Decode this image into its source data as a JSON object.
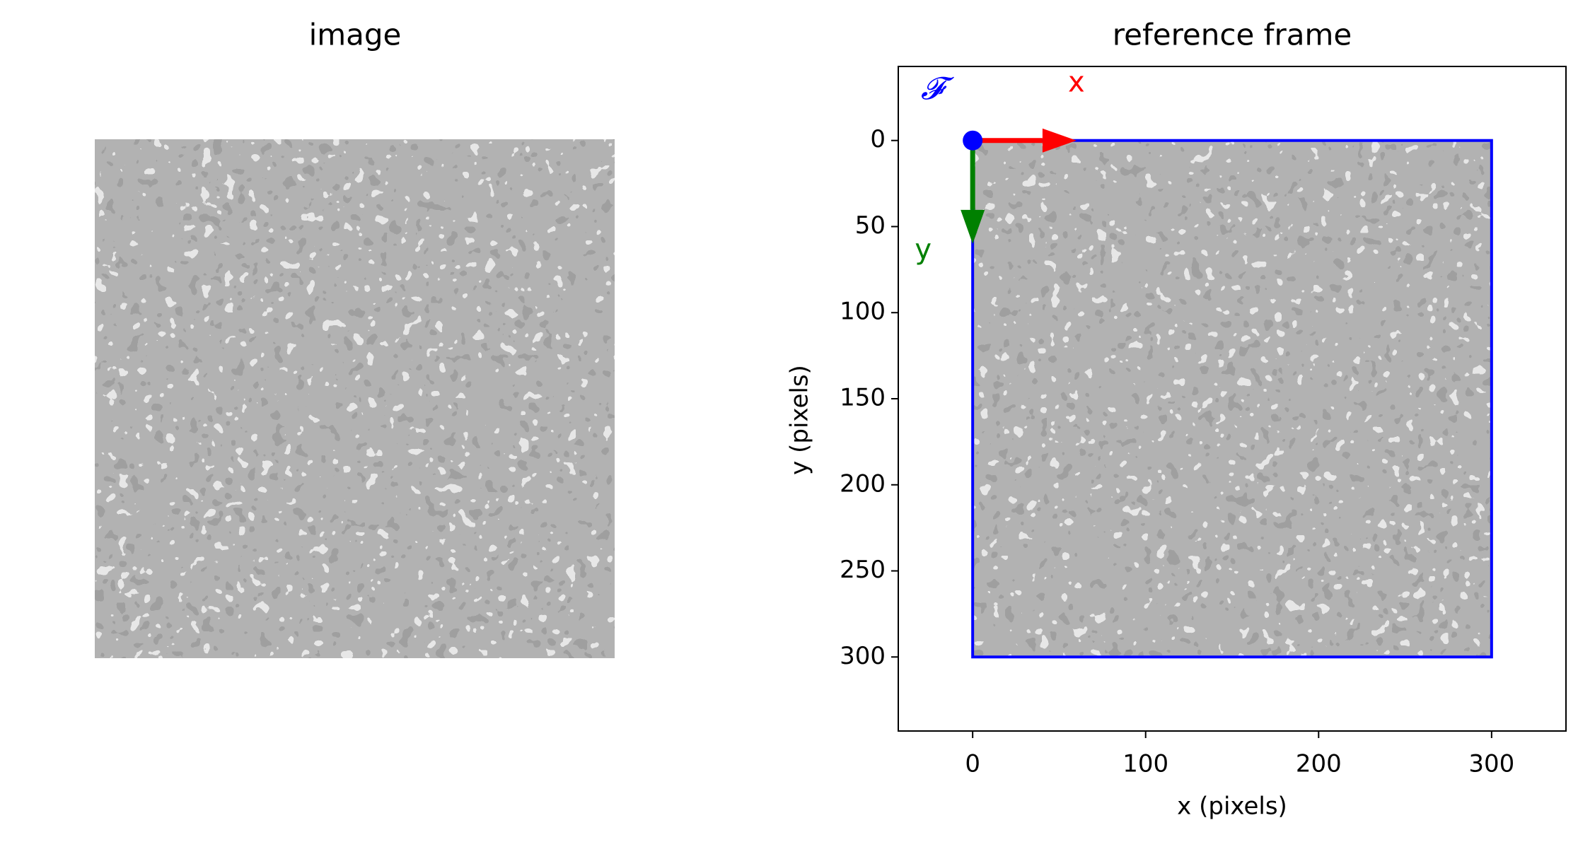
{
  "chart_data": [
    {
      "type": "image",
      "title": "image",
      "extent": [
        0,
        300,
        0,
        300
      ]
    },
    {
      "type": "image",
      "title": "reference frame",
      "extent": [
        0,
        300,
        0,
        300
      ],
      "xlabel": "x (pixels)",
      "ylabel": "y (pixels)",
      "xlim": [
        -43,
        343
      ],
      "ylim": [
        343,
        -43
      ],
      "xticks": [
        0,
        100,
        200,
        300
      ],
      "yticks": [
        0,
        50,
        100,
        150,
        200,
        250,
        300
      ],
      "frame_color": "#0000ff",
      "origin": {
        "x": 0,
        "y": 0,
        "label": "𝓕",
        "color": "#0000ff"
      },
      "axes_arrows": [
        {
          "label": "x",
          "color": "#ff0000",
          "dx": 60,
          "dy": 0
        },
        {
          "label": "y",
          "color": "#008000",
          "dx": 0,
          "dy": 60
        }
      ]
    }
  ]
}
